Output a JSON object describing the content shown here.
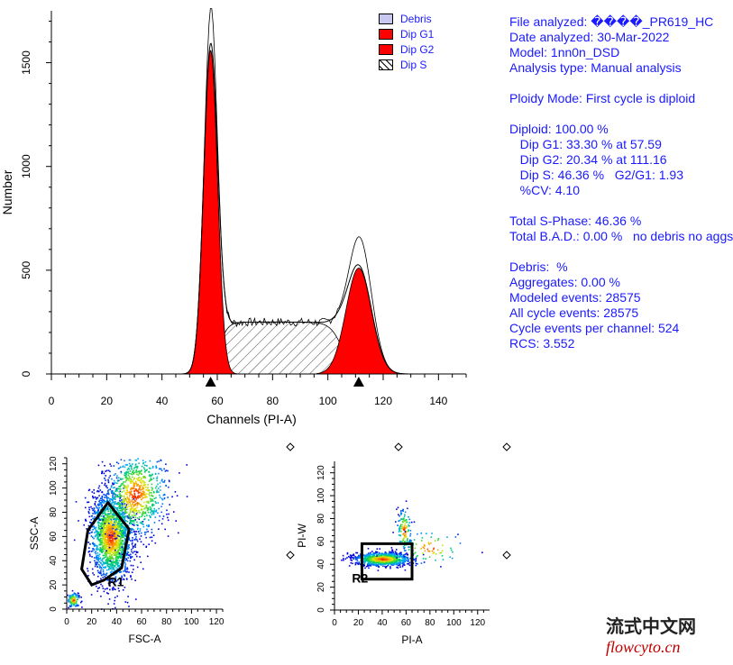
{
  "chart_data": [
    {
      "type": "histogram",
      "xlabel": "Channels (PI-A)",
      "ylabel": "Number",
      "xlim": [
        0,
        150
      ],
      "ylim": [
        0,
        1750
      ],
      "xticks": [
        "0",
        "20",
        "40",
        "60",
        "80",
        "100",
        "120",
        "140"
      ],
      "yticks": [
        "0",
        "500",
        "1000",
        "1500"
      ],
      "legend": [
        "Debris",
        "Dip G1",
        "Dip G2",
        "Dip S"
      ],
      "legend_position": "top-right",
      "series": [
        {
          "name": "Dip G1",
          "kind": "gaussian",
          "center": 57.59,
          "peak": 1560,
          "sigma": 2.5,
          "color": "#ff0000"
        },
        {
          "name": "Dip G2",
          "kind": "gaussian",
          "center": 111.16,
          "peak": 510,
          "sigma": 4.6,
          "color": "#ff0000"
        },
        {
          "name": "Dip S",
          "kind": "plateau",
          "start": 57.59,
          "end": 111.16,
          "level": 250,
          "pattern": "hatch"
        },
        {
          "name": "Debris",
          "color": "#c8c8f0"
        }
      ],
      "observed_peaks": [
        {
          "x": 58,
          "y": 1740
        },
        {
          "x": 112,
          "y": 660
        }
      ],
      "peak_markers": [
        57.59,
        111.16
      ]
    },
    {
      "type": "scatter",
      "xlabel": "FSC-A",
      "ylabel": "SSC-A",
      "xlim": [
        0,
        125
      ],
      "ylim": [
        0,
        125
      ],
      "xticks": [
        "0",
        "20",
        "40",
        "60",
        "80",
        "100",
        "120"
      ],
      "yticks": [
        "0",
        "20",
        "40",
        "60",
        "80",
        "100",
        "120"
      ],
      "gate": {
        "label": "R1",
        "polygon": [
          [
            20,
            20
          ],
          [
            12,
            33
          ],
          [
            17,
            65
          ],
          [
            33,
            88
          ],
          [
            50,
            66
          ],
          [
            44,
            34
          ],
          [
            30,
            24
          ]
        ]
      },
      "clusters": [
        {
          "cx": 35,
          "cy": 60,
          "sx": 9,
          "sy": 18,
          "rot": 0.5,
          "n": 1800
        },
        {
          "cx": 55,
          "cy": 95,
          "sx": 14,
          "sy": 18,
          "rot": 0.4,
          "n": 900
        },
        {
          "cx": 5,
          "cy": 8,
          "sx": 2.5,
          "sy": 3,
          "rot": 0,
          "n": 120
        }
      ]
    },
    {
      "type": "scatter",
      "xlabel": "PI-A",
      "ylabel": "PI-W",
      "xlim": [
        0,
        130
      ],
      "ylim": [
        0,
        130
      ],
      "xticks": [
        "0",
        "20",
        "40",
        "60",
        "80",
        "100",
        "120"
      ],
      "yticks": [
        "0",
        "20",
        "40",
        "60",
        "80",
        "100",
        "120"
      ],
      "gate": {
        "label": "R2",
        "rect": [
          [
            23,
            27
          ],
          [
            65,
            58
          ]
        ]
      },
      "clusters": [
        {
          "cx": 40,
          "cy": 45,
          "sx": 12,
          "sy": 3,
          "rot": 0,
          "n": 900
        },
        {
          "cx": 58,
          "cy": 70,
          "sx": 3,
          "sy": 10,
          "rot": 0,
          "n": 120
        },
        {
          "cx": 80,
          "cy": 55,
          "sx": 15,
          "sy": 8,
          "rot": 0,
          "n": 80
        }
      ]
    }
  ],
  "info_lines": [
    "File analyzed: ����_PR619_HC",
    "Date analyzed: 30-Mar-2022",
    "Model: 1nn0n_DSD",
    "Analysis type: Manual analysis",
    "",
    "Ploidy Mode: First cycle is diploid",
    "",
    "Diploid: 100.00 %",
    "   Dip G1: 33.30 % at 57.59",
    "   Dip G2: 20.34 % at 111.16",
    "   Dip S: 46.36 %   G2/G1: 1.93",
    "   %CV: 4.10",
    "",
    "Total S-Phase: 46.36 %",
    "Total B.A.D.: 0.00 %   no debris no aggs",
    "",
    "Debris:  %",
    "Aggregates: 0.00 %",
    "Modeled events: 28575",
    "All cycle events: 28575",
    "Cycle events per channel: 524",
    "RCS: 3.552"
  ],
  "colors": {
    "text": "#1a1aff",
    "fill": "#ff0000",
    "debris": "#c8c8f0"
  },
  "watermark": {
    "cn": "流式中文网",
    "en": "flowcyto.cn"
  }
}
